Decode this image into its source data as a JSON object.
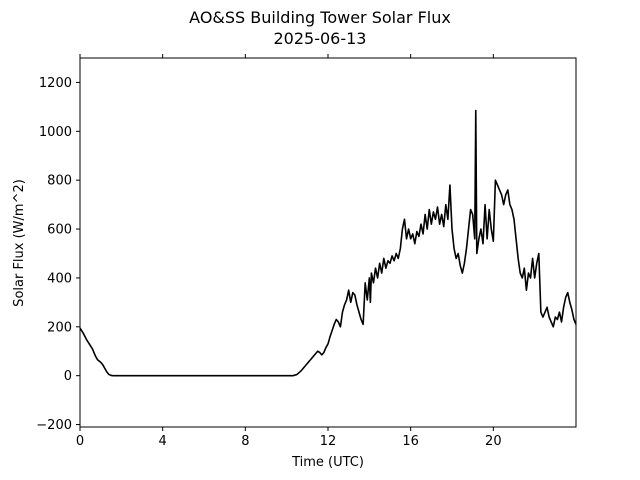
{
  "chart_data": {
    "type": "line",
    "title": "AO&SS Building Tower Solar Flux",
    "subtitle": "2025-06-13",
    "xlabel": "Time (UTC)",
    "ylabel": "Solar Flux (W/m^2)",
    "xlim": [
      0,
      24
    ],
    "ylim": [
      -210,
      1300
    ],
    "x_ticks": [
      0,
      4,
      8,
      12,
      16,
      20
    ],
    "y_ticks": [
      -200,
      0,
      200,
      400,
      600,
      800,
      1000,
      1200
    ],
    "grid": false,
    "legend": "none",
    "line_color": "#000000",
    "series": [
      {
        "x": [
          0.0,
          0.15,
          0.3,
          0.45,
          0.6,
          0.75,
          0.85,
          1.0,
          1.1,
          1.2,
          1.3,
          1.4,
          1.5,
          1.6,
          1.7,
          1.8,
          2.0,
          4.0,
          6.0,
          8.0,
          9.0,
          10.0,
          10.3,
          10.5,
          10.7,
          10.9,
          11.1,
          11.3,
          11.5,
          11.6,
          11.7,
          11.8,
          11.9,
          12.0,
          12.1,
          12.2,
          12.3,
          12.4,
          12.5,
          12.6,
          12.7,
          12.8,
          12.9,
          13.0,
          13.1,
          13.2,
          13.3,
          13.4,
          13.5,
          13.6,
          13.7,
          13.8,
          13.9,
          14.0,
          14.05,
          14.1,
          14.2,
          14.3,
          14.4,
          14.5,
          14.6,
          14.7,
          14.8,
          14.9,
          15.0,
          15.1,
          15.2,
          15.3,
          15.4,
          15.5,
          15.6,
          15.7,
          15.8,
          15.9,
          16.0,
          16.1,
          16.2,
          16.3,
          16.4,
          16.5,
          16.6,
          16.7,
          16.8,
          16.9,
          17.0,
          17.1,
          17.2,
          17.3,
          17.4,
          17.5,
          17.6,
          17.7,
          17.8,
          17.9,
          18.0,
          18.1,
          18.2,
          18.3,
          18.4,
          18.5,
          18.6,
          18.7,
          18.8,
          18.9,
          19.0,
          19.1,
          19.15,
          19.2,
          19.3,
          19.4,
          19.5,
          19.6,
          19.7,
          19.8,
          19.9,
          20.0,
          20.1,
          20.2,
          20.3,
          20.4,
          20.5,
          20.6,
          20.7,
          20.8,
          20.9,
          21.0,
          21.1,
          21.2,
          21.3,
          21.4,
          21.5,
          21.6,
          21.7,
          21.8,
          21.9,
          22.0,
          22.1,
          22.2,
          22.3,
          22.4,
          22.5,
          22.6,
          22.7,
          22.8,
          22.9,
          23.0,
          23.1,
          23.2,
          23.3,
          23.4,
          23.5,
          23.6,
          23.7,
          23.8,
          23.9,
          24.0
        ],
        "values": [
          195,
          175,
          150,
          130,
          110,
          80,
          65,
          55,
          45,
          30,
          15,
          5,
          1,
          0,
          0,
          0,
          0,
          0,
          0,
          0,
          0,
          0,
          0,
          5,
          20,
          40,
          60,
          80,
          100,
          95,
          85,
          95,
          115,
          130,
          160,
          185,
          210,
          230,
          220,
          200,
          260,
          290,
          310,
          350,
          300,
          340,
          330,
          290,
          260,
          230,
          210,
          380,
          310,
          400,
          300,
          420,
          380,
          440,
          400,
          460,
          420,
          480,
          440,
          470,
          460,
          490,
          470,
          500,
          480,
          520,
          600,
          640,
          560,
          600,
          560,
          580,
          540,
          590,
          570,
          620,
          580,
          660,
          600,
          680,
          620,
          670,
          640,
          690,
          620,
          660,
          610,
          700,
          640,
          780,
          600,
          520,
          480,
          500,
          450,
          420,
          460,
          520,
          600,
          680,
          660,
          560,
          1085,
          500,
          560,
          600,
          540,
          700,
          560,
          680,
          600,
          550,
          800,
          780,
          760,
          740,
          700,
          740,
          760,
          700,
          680,
          640,
          560,
          480,
          420,
          400,
          440,
          350,
          420,
          400,
          480,
          400,
          460,
          500,
          260,
          240,
          260,
          280,
          240,
          220,
          200,
          240,
          230,
          260,
          220,
          280,
          320,
          340,
          300,
          270,
          230,
          210
        ]
      }
    ]
  }
}
